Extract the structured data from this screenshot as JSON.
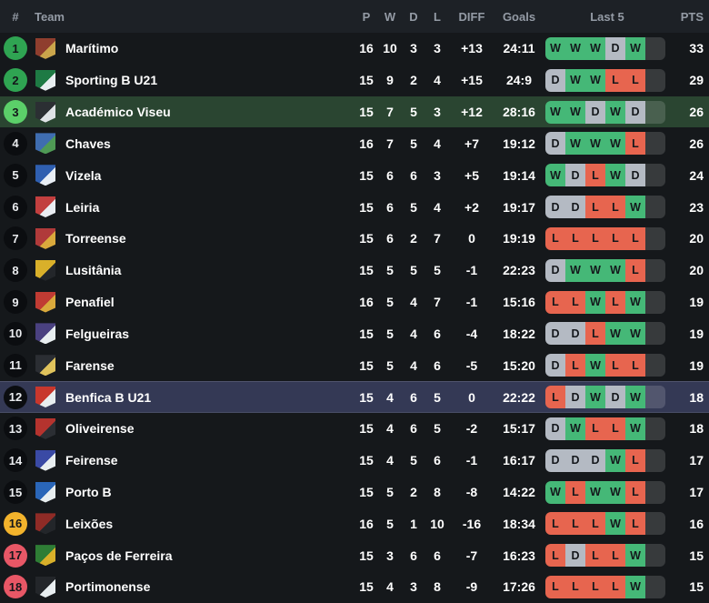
{
  "table": {
    "columns": {
      "rank": "#",
      "team": "Team",
      "p": "P",
      "w": "W",
      "d": "D",
      "l": "L",
      "diff": "DIFF",
      "goals": "Goals",
      "last5": "Last 5",
      "pts": "PTS"
    },
    "colors": {
      "bg": "#15181b",
      "header_bg": "#1d2126",
      "header_text": "#949ba5",
      "row_text": "#ffffff",
      "win": "#45b877",
      "draw": "#b4bac3",
      "loss": "#e7654f",
      "form_letter": "#15181c",
      "form_empty_slot": "rgba(255,255,255,0.15)",
      "rank_promotion_green": "#2fa452",
      "rank_playoff_bright_green": "#5bd069",
      "rank_neutral_dark": "#0b0d10",
      "rank_relegation_playoff_amber": "#f2b32c",
      "rank_relegation_red": "#e85766",
      "row_highlight_green": "#2a4531",
      "row_highlight_blue": "#343955"
    },
    "teams": [
      {
        "rank": 1,
        "rank_style": "green",
        "name": "Marítimo",
        "logo": [
          "#8f3e2e",
          "#caa54b"
        ],
        "p": 16,
        "w": 10,
        "d": 3,
        "l": 3,
        "diff": "+13",
        "goals": "24:11",
        "last5": [
          "W",
          "W",
          "W",
          "D",
          "W"
        ],
        "pts": 33,
        "highlight": null
      },
      {
        "rank": 2,
        "rank_style": "green",
        "name": "Sporting B U21",
        "logo": [
          "#1e7a44",
          "#e8eef0"
        ],
        "p": 15,
        "w": 9,
        "d": 2,
        "l": 4,
        "diff": "+15",
        "goals": "24:9",
        "last5": [
          "D",
          "W",
          "W",
          "L",
          "L"
        ],
        "pts": 29,
        "highlight": null
      },
      {
        "rank": 3,
        "rank_style": "bright-green",
        "name": "Académico Viseu",
        "logo": [
          "#2b2f33",
          "#dfe3e6"
        ],
        "p": 15,
        "w": 7,
        "d": 5,
        "l": 3,
        "diff": "+12",
        "goals": "28:16",
        "last5": [
          "W",
          "W",
          "D",
          "W",
          "D"
        ],
        "pts": 26,
        "highlight": "green"
      },
      {
        "rank": 4,
        "rank_style": "dark",
        "name": "Chaves",
        "logo": [
          "#3f6db0",
          "#4f9a55"
        ],
        "p": 16,
        "w": 7,
        "d": 5,
        "l": 4,
        "diff": "+7",
        "goals": "19:12",
        "last5": [
          "D",
          "W",
          "W",
          "W",
          "L"
        ],
        "pts": 26,
        "highlight": null
      },
      {
        "rank": 5,
        "rank_style": "dark",
        "name": "Vizela",
        "logo": [
          "#2f5fb0",
          "#e8eef5"
        ],
        "p": 15,
        "w": 6,
        "d": 6,
        "l": 3,
        "diff": "+5",
        "goals": "19:14",
        "last5": [
          "W",
          "D",
          "L",
          "W",
          "D"
        ],
        "pts": 24,
        "highlight": null
      },
      {
        "rank": 6,
        "rank_style": "dark",
        "name": "Leiria",
        "logo": [
          "#c23f3f",
          "#e9edf2"
        ],
        "p": 15,
        "w": 6,
        "d": 5,
        "l": 4,
        "diff": "+2",
        "goals": "19:17",
        "last5": [
          "D",
          "D",
          "L",
          "L",
          "W"
        ],
        "pts": 23,
        "highlight": null
      },
      {
        "rank": 7,
        "rank_style": "dark",
        "name": "Torreense",
        "logo": [
          "#b03a3a",
          "#d9a93c"
        ],
        "p": 15,
        "w": 6,
        "d": 2,
        "l": 7,
        "diff": "0",
        "goals": "19:19",
        "last5": [
          "L",
          "L",
          "L",
          "L",
          "L"
        ],
        "pts": 20,
        "highlight": null
      },
      {
        "rank": 8,
        "rank_style": "dark",
        "name": "Lusitânia",
        "logo": [
          "#d9b02a",
          "#23262a"
        ],
        "p": 15,
        "w": 5,
        "d": 5,
        "l": 5,
        "diff": "-1",
        "goals": "22:23",
        "last5": [
          "D",
          "W",
          "W",
          "W",
          "L"
        ],
        "pts": 20,
        "highlight": null
      },
      {
        "rank": 9,
        "rank_style": "dark",
        "name": "Penafiel",
        "logo": [
          "#c03b33",
          "#d9a93c"
        ],
        "p": 16,
        "w": 5,
        "d": 4,
        "l": 7,
        "diff": "-1",
        "goals": "15:16",
        "last5": [
          "L",
          "L",
          "W",
          "L",
          "W"
        ],
        "pts": 19,
        "highlight": null
      },
      {
        "rank": 10,
        "rank_style": "dark",
        "name": "Felgueiras",
        "logo": [
          "#4a4180",
          "#e8eef0"
        ],
        "p": 15,
        "w": 5,
        "d": 4,
        "l": 6,
        "diff": "-4",
        "goals": "18:22",
        "last5": [
          "D",
          "D",
          "L",
          "W",
          "W"
        ],
        "pts": 19,
        "highlight": null
      },
      {
        "rank": 11,
        "rank_style": "dark",
        "name": "Farense",
        "logo": [
          "#2b2e33",
          "#e0c35c"
        ],
        "p": 15,
        "w": 5,
        "d": 4,
        "l": 6,
        "diff": "-5",
        "goals": "15:20",
        "last5": [
          "D",
          "L",
          "W",
          "L",
          "L"
        ],
        "pts": 19,
        "highlight": null
      },
      {
        "rank": 12,
        "rank_style": "dark",
        "name": "Benfica B U21",
        "logo": [
          "#c8372d",
          "#e8eef0"
        ],
        "p": 15,
        "w": 4,
        "d": 6,
        "l": 5,
        "diff": "0",
        "goals": "22:22",
        "last5": [
          "L",
          "D",
          "W",
          "D",
          "W"
        ],
        "pts": 18,
        "highlight": "blue"
      },
      {
        "rank": 13,
        "rank_style": "dark",
        "name": "Oliveirense",
        "logo": [
          "#b5332e",
          "#2b2e33"
        ],
        "p": 15,
        "w": 4,
        "d": 6,
        "l": 5,
        "diff": "-2",
        "goals": "15:17",
        "last5": [
          "D",
          "W",
          "L",
          "L",
          "W"
        ],
        "pts": 18,
        "highlight": null
      },
      {
        "rank": 14,
        "rank_style": "dark",
        "name": "Feirense",
        "logo": [
          "#3a4aa5",
          "#e8eef0"
        ],
        "p": 15,
        "w": 4,
        "d": 5,
        "l": 6,
        "diff": "-1",
        "goals": "16:17",
        "last5": [
          "D",
          "D",
          "D",
          "W",
          "L"
        ],
        "pts": 17,
        "highlight": null
      },
      {
        "rank": 15,
        "rank_style": "dark",
        "name": "Porto B",
        "logo": [
          "#2a66b8",
          "#e8eef0"
        ],
        "p": 15,
        "w": 5,
        "d": 2,
        "l": 8,
        "diff": "-8",
        "goals": "14:22",
        "last5": [
          "W",
          "L",
          "W",
          "W",
          "L"
        ],
        "pts": 17,
        "highlight": null
      },
      {
        "rank": 16,
        "rank_style": "amber",
        "name": "Leixões",
        "logo": [
          "#8f2b26",
          "#23262a"
        ],
        "p": 16,
        "w": 5,
        "d": 1,
        "l": 10,
        "diff": "-16",
        "goals": "18:34",
        "last5": [
          "L",
          "L",
          "L",
          "W",
          "L"
        ],
        "pts": 16,
        "highlight": null
      },
      {
        "rank": 17,
        "rank_style": "red",
        "name": "Paços de Ferreira",
        "logo": [
          "#2e7d35",
          "#d9b02a"
        ],
        "p": 15,
        "w": 3,
        "d": 6,
        "l": 6,
        "diff": "-7",
        "goals": "16:23",
        "last5": [
          "L",
          "D",
          "L",
          "L",
          "W"
        ],
        "pts": 15,
        "highlight": null
      },
      {
        "rank": 18,
        "rank_style": "red",
        "name": "Portimonense",
        "logo": [
          "#23262a",
          "#e8eef0"
        ],
        "p": 15,
        "w": 4,
        "d": 3,
        "l": 8,
        "diff": "-9",
        "goals": "17:26",
        "last5": [
          "L",
          "L",
          "L",
          "L",
          "W"
        ],
        "pts": 15,
        "highlight": null
      }
    ]
  }
}
